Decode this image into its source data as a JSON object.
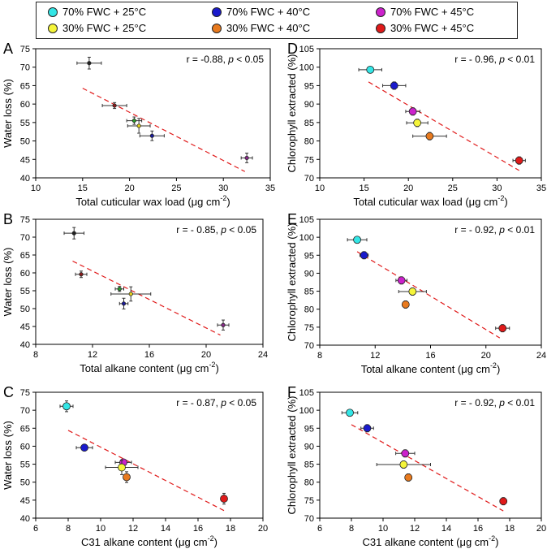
{
  "legend": {
    "items": [
      {
        "label": "70%  FWC + 25°C",
        "color": "#33e6e6"
      },
      {
        "label": "70%  FWC + 40°C",
        "color": "#1a1acc"
      },
      {
        "label": "70%  FWC + 45°C",
        "color": "#cc22cc"
      },
      {
        "label": "30%  FWC + 25°C",
        "color": "#f5f53a"
      },
      {
        "label": "30%  FWC + 40°C",
        "color": "#e87a1e"
      },
      {
        "label": "30%  FWC + 45°C",
        "color": "#e01a1a"
      }
    ]
  },
  "chart_data": [
    {
      "panel": "A",
      "type": "scatter",
      "xlabel": "Total cuticular wax load (μg cm⁻²)",
      "ylabel": "Water loss (%)",
      "xlim": [
        10,
        35
      ],
      "ylim": [
        40,
        75
      ],
      "xticks": [
        10,
        15,
        20,
        25,
        30,
        35
      ],
      "yticks": [
        40,
        45,
        50,
        55,
        60,
        65,
        70,
        75
      ],
      "annotation": "r = -0.88, p < 0.05",
      "marker": "small",
      "points": [
        {
          "x": 15.7,
          "y": 71.1,
          "xerr": 1.3,
          "yerr": 1.6,
          "color": "#222222"
        },
        {
          "x": 18.4,
          "y": 59.6,
          "xerr": 1.3,
          "yerr": 0.8,
          "color": "#8b1a1a"
        },
        {
          "x": 20.5,
          "y": 55.5,
          "xerr": 0.8,
          "yerr": 1.0,
          "color": "#2a9a2a"
        },
        {
          "x": 21.0,
          "y": 54.1,
          "xerr": 1.2,
          "yerr": 2.0,
          "color": "#e6d21a"
        },
        {
          "x": 22.4,
          "y": 51.4,
          "xerr": 1.3,
          "yerr": 1.3,
          "color": "#1a1a9a"
        },
        {
          "x": 32.5,
          "y": 45.4,
          "xerr": 0.6,
          "yerr": 1.3,
          "color": "#8a2a8a"
        }
      ],
      "fit": {
        "x": [
          15.0,
          32.3
        ],
        "y": [
          64.3,
          41.7
        ]
      }
    },
    {
      "panel": "D",
      "type": "scatter",
      "xlabel": "Total cuticular wax load (μg cm⁻²)",
      "ylabel": "Chlorophyll extracted (%)",
      "xlim": [
        10,
        35
      ],
      "ylim": [
        70,
        105
      ],
      "xticks": [
        10,
        15,
        20,
        25,
        30,
        35
      ],
      "yticks": [
        70,
        75,
        80,
        85,
        90,
        95,
        100,
        105
      ],
      "annotation": "r = - 0.96, p < 0.01",
      "marker": "large",
      "points": [
        {
          "x": 15.7,
          "y": 99.3,
          "xerr": 1.3,
          "yerr": 0.8,
          "color": "#33e6e6"
        },
        {
          "x": 18.4,
          "y": 95.0,
          "xerr": 1.3,
          "yerr": 1.0,
          "color": "#1a1acc"
        },
        {
          "x": 20.5,
          "y": 88.0,
          "xerr": 0.8,
          "yerr": 1.0,
          "color": "#cc22cc"
        },
        {
          "x": 21.0,
          "y": 84.9,
          "xerr": 1.2,
          "yerr": 1.0,
          "color": "#f5f53a"
        },
        {
          "x": 22.4,
          "y": 81.3,
          "xerr": 1.9,
          "yerr": 1.0,
          "color": "#e87a1e"
        },
        {
          "x": 32.5,
          "y": 74.7,
          "xerr": 0.7,
          "yerr": 1.0,
          "color": "#e01a1a"
        }
      ],
      "fit": {
        "x": [
          15.5,
          32.5
        ],
        "y": [
          96.0,
          72.0
        ]
      }
    },
    {
      "panel": "B",
      "type": "scatter",
      "xlabel": "Total alkane content (μg cm⁻²)",
      "ylabel": "Water loss (%)",
      "xlim": [
        8,
        24
      ],
      "ylim": [
        40,
        75
      ],
      "xticks": [
        8,
        12,
        16,
        20,
        24
      ],
      "yticks": [
        40,
        45,
        50,
        55,
        60,
        65,
        70,
        75
      ],
      "annotation": "r = - 0.85, p < 0.05",
      "marker": "small",
      "points": [
        {
          "x": 10.7,
          "y": 71.1,
          "xerr": 0.7,
          "yerr": 1.6,
          "color": "#222222"
        },
        {
          "x": 11.2,
          "y": 59.6,
          "xerr": 0.4,
          "yerr": 0.9,
          "color": "#8b1a1a"
        },
        {
          "x": 13.9,
          "y": 55.5,
          "xerr": 0.3,
          "yerr": 0.7,
          "color": "#2a9a2a"
        },
        {
          "x": 14.7,
          "y": 54.1,
          "xerr": 1.4,
          "yerr": 2.0,
          "color": "#e6d21a"
        },
        {
          "x": 14.2,
          "y": 51.4,
          "xerr": 0.3,
          "yerr": 1.5,
          "color": "#1a1a9a"
        },
        {
          "x": 21.2,
          "y": 45.4,
          "xerr": 0.4,
          "yerr": 1.4,
          "color": "#8a2a8a"
        }
      ],
      "fit": {
        "x": [
          10.6,
          21.0
        ],
        "y": [
          63.3,
          42.6
        ]
      }
    },
    {
      "panel": "E",
      "type": "scatter",
      "xlabel": "Total alkane content (μg cm⁻²)",
      "ylabel": "Chlorophyll extracted (%)",
      "xlim": [
        8,
        24
      ],
      "ylim": [
        70,
        105
      ],
      "xticks": [
        8,
        12,
        16,
        20,
        24
      ],
      "yticks": [
        70,
        75,
        80,
        85,
        90,
        95,
        100,
        105
      ],
      "annotation": "r = - 0.92, p < 0.01",
      "marker": "large",
      "points": [
        {
          "x": 10.7,
          "y": 99.3,
          "xerr": 0.7,
          "yerr": 0.8,
          "color": "#33e6e6"
        },
        {
          "x": 11.2,
          "y": 95.0,
          "xerr": 0.3,
          "yerr": 1.0,
          "color": "#1a1acc"
        },
        {
          "x": 13.9,
          "y": 88.0,
          "xerr": 0.4,
          "yerr": 1.0,
          "color": "#cc22cc"
        },
        {
          "x": 14.7,
          "y": 84.9,
          "xerr": 1.0,
          "yerr": 1.0,
          "color": "#f5f53a"
        },
        {
          "x": 14.2,
          "y": 81.3,
          "xerr": 0.2,
          "yerr": 1.0,
          "color": "#e87a1e"
        },
        {
          "x": 21.2,
          "y": 74.7,
          "xerr": 0.5,
          "yerr": 1.0,
          "color": "#e01a1a"
        }
      ],
      "fit": {
        "x": [
          10.7,
          21.0
        ],
        "y": [
          96.0,
          72.0
        ]
      }
    },
    {
      "panel": "C",
      "type": "scatter",
      "xlabel": "C31 alkane content (μg cm⁻²)",
      "ylabel": "Water loss (%)",
      "xlim": [
        6,
        20
      ],
      "ylim": [
        40,
        75
      ],
      "xticks": [
        6,
        8,
        10,
        12,
        14,
        16,
        18,
        20
      ],
      "yticks": [
        40,
        45,
        50,
        55,
        60,
        65,
        70,
        75
      ],
      "annotation": "r = - 0.87, p < 0.05",
      "marker": "large",
      "points": [
        {
          "x": 7.9,
          "y": 71.1,
          "xerr": 0.4,
          "yerr": 1.5,
          "color": "#33e6e6"
        },
        {
          "x": 9.0,
          "y": 59.6,
          "xerr": 0.5,
          "yerr": 0.9,
          "color": "#1a1acc"
        },
        {
          "x": 11.4,
          "y": 55.5,
          "xerr": 0.5,
          "yerr": 0.8,
          "color": "#cc22cc"
        },
        {
          "x": 11.3,
          "y": 54.1,
          "xerr": 1.0,
          "yerr": 2.0,
          "color": "#f5f53a"
        },
        {
          "x": 11.6,
          "y": 51.4,
          "xerr": 0.2,
          "yerr": 1.5,
          "color": "#e87a1e"
        },
        {
          "x": 17.6,
          "y": 45.4,
          "xerr": 0.2,
          "yerr": 1.5,
          "color": "#e01a1a"
        }
      ],
      "fit": {
        "x": [
          8.0,
          17.6
        ],
        "y": [
          64.4,
          42.1
        ]
      }
    },
    {
      "panel": "F",
      "type": "scatter",
      "xlabel": "C31 alkane content (μg cm⁻²)",
      "ylabel": "Chlorophyll extracted (%)",
      "xlim": [
        6,
        20
      ],
      "ylim": [
        70,
        105
      ],
      "xticks": [
        6,
        8,
        10,
        12,
        14,
        16,
        18,
        20
      ],
      "yticks": [
        70,
        75,
        80,
        85,
        90,
        95,
        100,
        105
      ],
      "annotation": "r = - 0.92, p < 0.01",
      "marker": "large",
      "points": [
        {
          "x": 7.9,
          "y": 99.3,
          "xerr": 0.5,
          "yerr": 0.8,
          "color": "#33e6e6"
        },
        {
          "x": 9.0,
          "y": 95.0,
          "xerr": 0.4,
          "yerr": 1.0,
          "color": "#1a1acc"
        },
        {
          "x": 11.4,
          "y": 88.0,
          "xerr": 0.6,
          "yerr": 1.0,
          "color": "#cc22cc"
        },
        {
          "x": 11.3,
          "y": 84.9,
          "xerr": 1.7,
          "yerr": 1.0,
          "color": "#f5f53a"
        },
        {
          "x": 11.6,
          "y": 81.3,
          "xerr": 0.2,
          "yerr": 1.0,
          "color": "#e87a1e"
        },
        {
          "x": 17.6,
          "y": 74.7,
          "xerr": 0.2,
          "yerr": 1.0,
          "color": "#e01a1a"
        }
      ],
      "fit": {
        "x": [
          8.0,
          17.6
        ],
        "y": [
          96.0,
          72.0
        ]
      }
    }
  ]
}
